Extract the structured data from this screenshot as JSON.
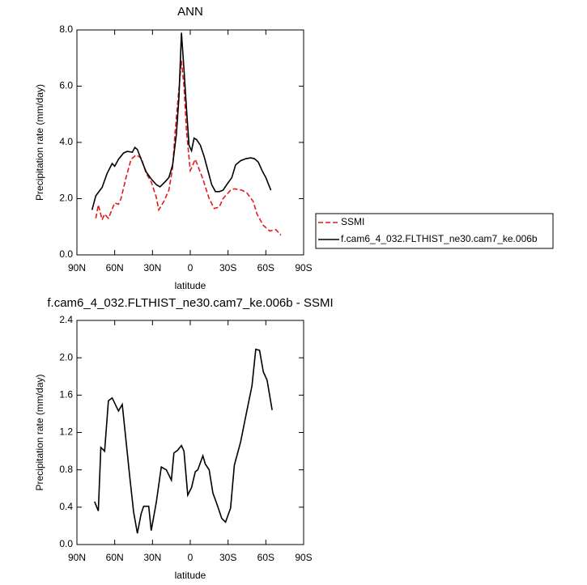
{
  "chart_data": [
    {
      "type": "line",
      "title": "ANN",
      "xlabel": "latitude",
      "ylabel": "Precipitation rate (mm/day)",
      "xlim": [
        90,
        -90
      ],
      "xticks": [
        {
          "value": 90,
          "label": "90N"
        },
        {
          "value": 60,
          "label": "60N"
        },
        {
          "value": 30,
          "label": "30N"
        },
        0,
        {
          "value": -30,
          "label": "30S"
        },
        {
          "value": -60,
          "label": "60S"
        },
        {
          "value": -90,
          "label": "90S"
        }
      ],
      "ylim": [
        0,
        8
      ],
      "yticks": [
        {
          "value": 0,
          "label": "0.0"
        },
        {
          "value": 2,
          "label": "2.0"
        },
        {
          "value": 4,
          "label": "4.0"
        },
        {
          "value": 6,
          "label": "6.0"
        },
        {
          "value": 8,
          "label": "8.0"
        }
      ],
      "legend": "right",
      "series": [
        {
          "name": "SSMI",
          "color": "#e41a1c",
          "line_style": "dashed",
          "x": [
            75,
            73,
            70,
            68,
            65,
            60,
            57,
            55,
            51,
            47,
            43,
            39,
            35,
            31,
            27,
            25,
            21,
            17,
            14,
            12,
            10,
            7,
            5,
            3,
            0,
            -4,
            -10,
            -15,
            -19,
            -23,
            -26,
            -32,
            -35,
            -41,
            -45,
            -50,
            -53,
            -58,
            -63,
            -68,
            -72
          ],
          "values": [
            1.3,
            1.78,
            1.25,
            1.45,
            1.3,
            1.85,
            1.8,
            2.0,
            2.75,
            3.4,
            3.55,
            3.45,
            2.9,
            2.6,
            2.05,
            1.6,
            1.9,
            2.3,
            3.1,
            4.4,
            5.4,
            6.9,
            6.0,
            4.4,
            3.0,
            3.4,
            2.7,
            2.0,
            1.65,
            1.7,
            2.0,
            2.3,
            2.35,
            2.3,
            2.2,
            1.9,
            1.45,
            1.05,
            0.85,
            0.9,
            0.7
          ]
        },
        {
          "name": "f.cam6_4_032.FLTHIST_ne30.cam7_ke.006b",
          "color": "#000000",
          "line_style": "solid",
          "x": [
            78,
            75,
            70,
            66,
            62,
            60,
            57,
            53,
            50,
            46,
            44,
            42,
            39,
            35,
            31,
            27,
            24,
            20,
            17,
            14,
            11,
            9,
            7,
            5,
            3,
            1,
            -1,
            -3,
            -5,
            -8,
            -11,
            -14,
            -17,
            -20,
            -23,
            -26,
            -29,
            -33,
            -36,
            -40,
            -44,
            -48,
            -51,
            -54,
            -57,
            -60,
            -64
          ],
          "values": [
            1.6,
            2.1,
            2.4,
            2.9,
            3.25,
            3.15,
            3.4,
            3.62,
            3.68,
            3.65,
            3.82,
            3.75,
            3.4,
            2.95,
            2.7,
            2.5,
            2.42,
            2.6,
            2.75,
            3.2,
            4.3,
            5.6,
            7.9,
            6.6,
            5.2,
            3.9,
            3.7,
            4.15,
            4.1,
            3.9,
            3.5,
            3.0,
            2.5,
            2.25,
            2.25,
            2.3,
            2.5,
            2.75,
            3.2,
            3.35,
            3.42,
            3.45,
            3.42,
            3.3,
            3.0,
            2.75,
            2.3
          ]
        }
      ]
    },
    {
      "type": "line",
      "title": "f.cam6_4_032.FLTHIST_ne30.cam7_ke.006b - SSMI",
      "xlabel": "latitude",
      "ylabel": "Precipitation rate (mm/day)",
      "xlim": [
        90,
        -90
      ],
      "xticks": [
        {
          "value": 90,
          "label": "90N"
        },
        {
          "value": 60,
          "label": "60N"
        },
        {
          "value": 30,
          "label": "30N"
        },
        0,
        {
          "value": -30,
          "label": "30S"
        },
        {
          "value": -60,
          "label": "60S"
        },
        {
          "value": -90,
          "label": "90S"
        }
      ],
      "ylim": [
        0,
        2.4
      ],
      "yticks": [
        {
          "value": 0,
          "label": "0.0"
        },
        {
          "value": 0.4,
          "label": "0.4"
        },
        {
          "value": 0.8,
          "label": "0.8"
        },
        {
          "value": 1.2,
          "label": "1.2"
        },
        {
          "value": 1.6,
          "label": "1.6"
        },
        {
          "value": 2.0,
          "label": "2.0"
        },
        {
          "value": 2.4,
          "label": "2.4"
        }
      ],
      "series": [
        {
          "color": "#000000",
          "line_style": "solid",
          "x": [
            76,
            73,
            71,
            68,
            65,
            62,
            57,
            54,
            50,
            48,
            45,
            42,
            39,
            37,
            33,
            31,
            27,
            23,
            19,
            15,
            13,
            10,
            7,
            5,
            2,
            -1,
            -4,
            -6,
            -10,
            -12,
            -15,
            -18,
            -21,
            -25,
            -28,
            -32,
            -35,
            -40,
            -44,
            -49,
            -52,
            -55,
            -58,
            -61,
            -65
          ],
          "values": [
            0.46,
            0.36,
            1.04,
            1.0,
            1.54,
            1.57,
            1.43,
            1.5,
            0.98,
            0.72,
            0.35,
            0.12,
            0.33,
            0.41,
            0.41,
            0.15,
            0.45,
            0.83,
            0.8,
            0.69,
            0.98,
            1.01,
            1.06,
            1.0,
            0.53,
            0.61,
            0.78,
            0.8,
            0.95,
            0.86,
            0.8,
            0.55,
            0.44,
            0.28,
            0.24,
            0.39,
            0.85,
            1.1,
            1.37,
            1.7,
            2.09,
            2.08,
            1.85,
            1.76,
            1.44
          ]
        }
      ]
    }
  ]
}
